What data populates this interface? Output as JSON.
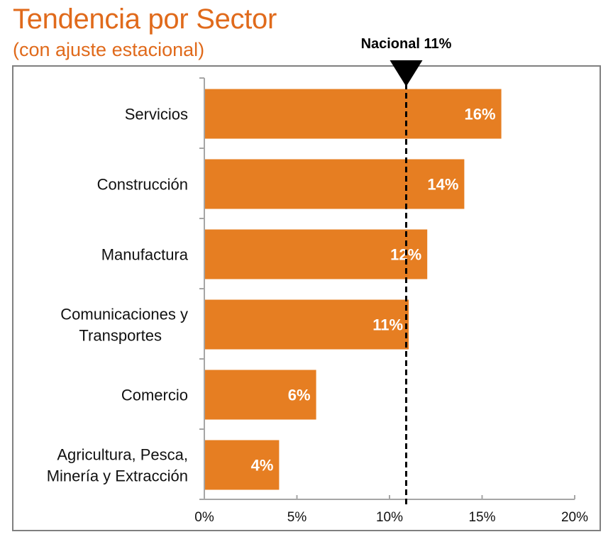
{
  "header": {
    "title": "Tendencia por Sector",
    "subtitle": "(con ajuste estacional)"
  },
  "chart_data": {
    "type": "bar",
    "orientation": "horizontal",
    "title": "Tendencia por Sector",
    "subtitle": "(con ajuste estacional)",
    "xlabel": "",
    "ylabel": "",
    "categories": [
      [
        "Servicios"
      ],
      [
        "Construcción"
      ],
      [
        "Manufactura"
      ],
      [
        "Comunicaciones y",
        "Transportes"
      ],
      [
        "Comercio"
      ],
      [
        "Agricultura, Pesca,",
        "Minería y Extracción"
      ]
    ],
    "category_names": [
      "Servicios",
      "Construcción",
      "Manufactura",
      "Comunicaciones y Transportes",
      "Comercio",
      "Agricultura, Pesca, Minería y Extracción"
    ],
    "values": [
      16,
      14,
      12,
      11,
      6,
      4
    ],
    "value_labels": [
      "16%",
      "14%",
      "12%",
      "11%",
      "6%",
      "4%"
    ],
    "xlim": [
      0,
      20
    ],
    "xticks": [
      0,
      5,
      10,
      15,
      20
    ],
    "xtick_labels": [
      "0%",
      "5%",
      "10%",
      "15%",
      "20%"
    ],
    "grid": false,
    "legend": "none",
    "bar_color": "#E67E22",
    "reference_line": {
      "label": "Nacional  11%",
      "value": 10.9,
      "style": "dashed",
      "color": "#000000",
      "marker": "down-triangle"
    }
  }
}
